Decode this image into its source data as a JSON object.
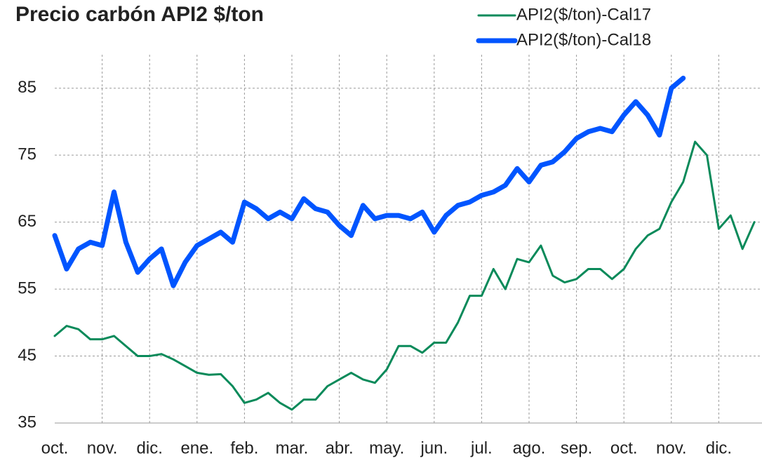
{
  "chart_data": {
    "type": "line",
    "title": "Precio carbón API2 $/ton",
    "categories": [
      "oct.",
      null,
      null,
      null,
      "nov.",
      null,
      null,
      null,
      "dic.",
      null,
      null,
      null,
      "ene.",
      null,
      null,
      null,
      "feb.",
      null,
      null,
      null,
      "mar.",
      null,
      null,
      null,
      "abr.",
      null,
      null,
      null,
      "may.",
      null,
      null,
      null,
      "jun.",
      null,
      null,
      null,
      "jul.",
      null,
      null,
      null,
      "ago.",
      null,
      null,
      null,
      "sep.",
      null,
      null,
      null,
      "oct.",
      null,
      null,
      null,
      "nov.",
      null,
      null,
      null,
      "dic.",
      null,
      null,
      null
    ],
    "series": [
      {
        "name": "API2($/ton)-Cal17",
        "color": "#0a8a5a",
        "width": 3,
        "values": [
          48,
          49.5,
          49,
          47.5,
          47.5,
          48,
          46.5,
          45,
          45,
          45.3,
          44.5,
          43.5,
          42.5,
          42.2,
          42.3,
          40.5,
          38,
          38.5,
          39.5,
          38,
          37,
          38.5,
          38.5,
          40.5,
          41.5,
          42.5,
          41.5,
          41,
          43,
          46.5,
          46.5,
          45.5,
          47,
          47,
          50,
          54,
          54,
          58,
          55,
          59.5,
          59,
          61.5,
          57,
          56,
          56.5,
          58,
          58,
          56.5,
          58,
          61,
          63,
          64,
          68,
          71,
          77,
          75,
          64,
          66,
          61,
          65
        ]
      },
      {
        "name": "API2($/ton)-Cal18",
        "color": "#0055ff",
        "width": 7,
        "values": [
          63,
          58,
          61,
          62,
          61.5,
          69.5,
          62,
          57.5,
          59.5,
          61,
          55.5,
          59,
          61.5,
          62.5,
          63.5,
          62,
          68,
          67,
          65.5,
          66.5,
          65.5,
          68.5,
          67,
          66.5,
          64.5,
          63,
          67.5,
          65.5,
          66,
          66,
          65.5,
          66.5,
          63.5,
          66,
          67.5,
          68,
          69,
          69.5,
          70.5,
          73,
          71,
          73.5,
          74,
          75.5,
          77.5,
          78.5,
          79,
          78.5,
          81,
          83,
          81,
          78,
          85,
          86.5,
          null,
          null,
          null,
          null,
          null,
          null
        ]
      }
    ],
    "ylim": [
      35,
      90
    ],
    "yticks": [
      35,
      45,
      55,
      65,
      75,
      85
    ],
    "grid": true
  }
}
